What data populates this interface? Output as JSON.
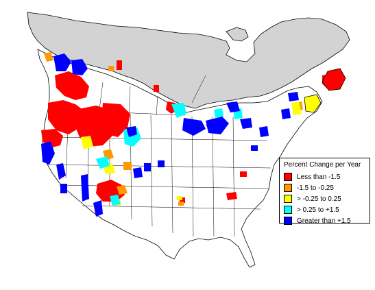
{
  "legend": {
    "title": "Percent Change per Year",
    "items": [
      {
        "label": "Less than -1.5",
        "color": "#ff0000"
      },
      {
        "label": "-1.5 to -0.25",
        "color": "#ff9900"
      },
      {
        "label": "> -0.25 to 0.25",
        "color": "#ffff00"
      },
      {
        "label": "> 0.25 to +1.5",
        "color": "#00ffff"
      },
      {
        "label": "Greater than +1.5",
        "color": "#0000ff"
      }
    ]
  },
  "colors": {
    "no_data_gray": "#d3d3d3",
    "land_white": "#ffffff",
    "borders": "#000000"
  }
}
